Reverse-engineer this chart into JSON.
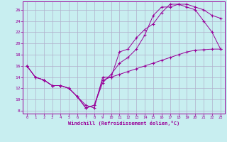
{
  "xlabel": "Windchill (Refroidissement éolien,°C)",
  "bg_color": "#c8eef0",
  "grid_color": "#b0b0cc",
  "line_color": "#990099",
  "marker": "+",
  "xlim": [
    -0.5,
    23.5
  ],
  "ylim": [
    7.5,
    27.5
  ],
  "xticks": [
    0,
    1,
    2,
    3,
    4,
    5,
    6,
    7,
    8,
    9,
    10,
    11,
    12,
    13,
    14,
    15,
    16,
    17,
    18,
    19,
    20,
    21,
    22,
    23
  ],
  "yticks": [
    8,
    10,
    12,
    14,
    16,
    18,
    20,
    22,
    24,
    26
  ],
  "line1_x": [
    0,
    1,
    2,
    3,
    4,
    5,
    6,
    7,
    8,
    9,
    10,
    11,
    12,
    13,
    14,
    15,
    16,
    17,
    18,
    19,
    20,
    21,
    22,
    23
  ],
  "line1_y": [
    16,
    14,
    13.5,
    12.5,
    12.5,
    12,
    10.5,
    9,
    8.5,
    14,
    14,
    18.5,
    19,
    21,
    22.5,
    23.5,
    25.5,
    27,
    27,
    27,
    26.5,
    26,
    25,
    24.5
  ],
  "line2_x": [
    0,
    1,
    2,
    3,
    4,
    5,
    6,
    7,
    8,
    9,
    10,
    11,
    12,
    13,
    14,
    15,
    16,
    17,
    18,
    19,
    20,
    21,
    22,
    23
  ],
  "line2_y": [
    16,
    14,
    13.5,
    12.5,
    12.5,
    12,
    10.5,
    8.5,
    9,
    13,
    14.5,
    16.5,
    17.5,
    19,
    21.5,
    25,
    26.5,
    26.5,
    27,
    26.5,
    26,
    24,
    22,
    19
  ],
  "line3_x": [
    0,
    1,
    2,
    3,
    4,
    5,
    6,
    7,
    8,
    9,
    10,
    11,
    12,
    13,
    14,
    15,
    16,
    17,
    18,
    19,
    20,
    21,
    22,
    23
  ],
  "line3_y": [
    16,
    14,
    13.5,
    12.5,
    12.5,
    12,
    10.5,
    8.5,
    9,
    13.5,
    14,
    14.5,
    15,
    15.5,
    16,
    16.5,
    17,
    17.5,
    18,
    18.5,
    18.8,
    18.9,
    19,
    19
  ]
}
